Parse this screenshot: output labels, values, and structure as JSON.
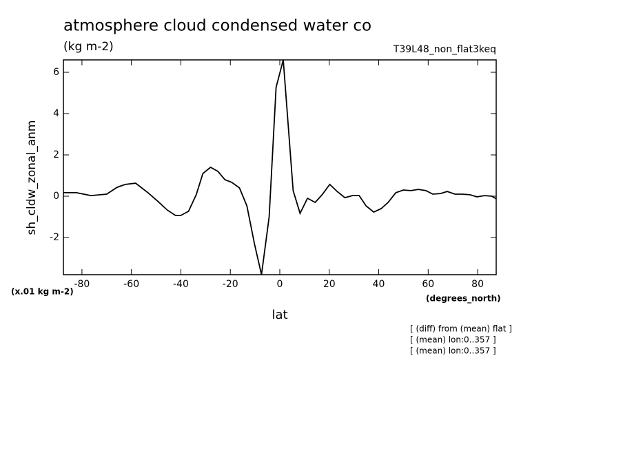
{
  "chart_data": {
    "type": "line",
    "title": "atmosphere cloud condensed water co",
    "subtitle": "(kg m-2)",
    "run_label": "T39L48_non_flat3keq",
    "y_label": "sh_cldw_zonal_anm",
    "y_units": "(x.01 kg m-2)",
    "x_units": "(degrees_north)",
    "x_label": "lat",
    "notes": [
      "[ (diff) from (mean) flat ]",
      "[ (mean) lon:0..357 ]",
      "[ (mean) lon:0..357 ]"
    ],
    "x": [
      -87.5,
      -82.2,
      -76.4,
      -70,
      -65.8,
      -62.5,
      -58.3,
      -53.3,
      -49.1,
      -45.5,
      -42.2,
      -40,
      -36.9,
      -33.8,
      -31.1,
      -28,
      -25,
      -22.2,
      -19.4,
      -16.3,
      -13.3,
      -10.2,
      -7.4,
      -4.3,
      -1.5,
      1.4,
      5.4,
      8.2,
      11.2,
      14.3,
      17.1,
      20.2,
      23.2,
      26.3,
      29.4,
      32.1,
      34.9,
      38,
      41,
      43.8,
      46.9,
      50,
      53,
      56,
      59.1,
      61.9,
      65,
      67.7,
      70.8,
      73.8,
      76.9,
      79.7,
      82.8,
      85.8,
      87.5
    ],
    "series": [
      {
        "color": "#000000",
        "values": [
          0.17,
          0.17,
          0.03,
          0.1,
          0.43,
          0.57,
          0.63,
          0.17,
          -0.27,
          -0.67,
          -0.93,
          -0.93,
          -0.73,
          0.07,
          1.1,
          1.4,
          1.2,
          0.8,
          0.67,
          0.4,
          -0.47,
          -2.33,
          -3.8,
          -1.0,
          5.27,
          6.6,
          0.27,
          -0.83,
          -0.1,
          -0.3,
          0.07,
          0.57,
          0.23,
          -0.07,
          0.03,
          0.03,
          -0.47,
          -0.77,
          -0.6,
          -0.3,
          0.17,
          0.3,
          0.27,
          0.33,
          0.27,
          0.1,
          0.13,
          0.23,
          0.1,
          0.1,
          0.07,
          -0.03,
          0.03,
          0,
          -0.13
        ]
      }
    ],
    "xlim": [
      -87.5,
      87.5
    ],
    "xticks": [
      -80,
      -60,
      -40,
      -20,
      0,
      20,
      40,
      60,
      80
    ],
    "ylim": [
      -3.8,
      6.6
    ],
    "yticks": [
      -2,
      0,
      2,
      4,
      6
    ]
  }
}
